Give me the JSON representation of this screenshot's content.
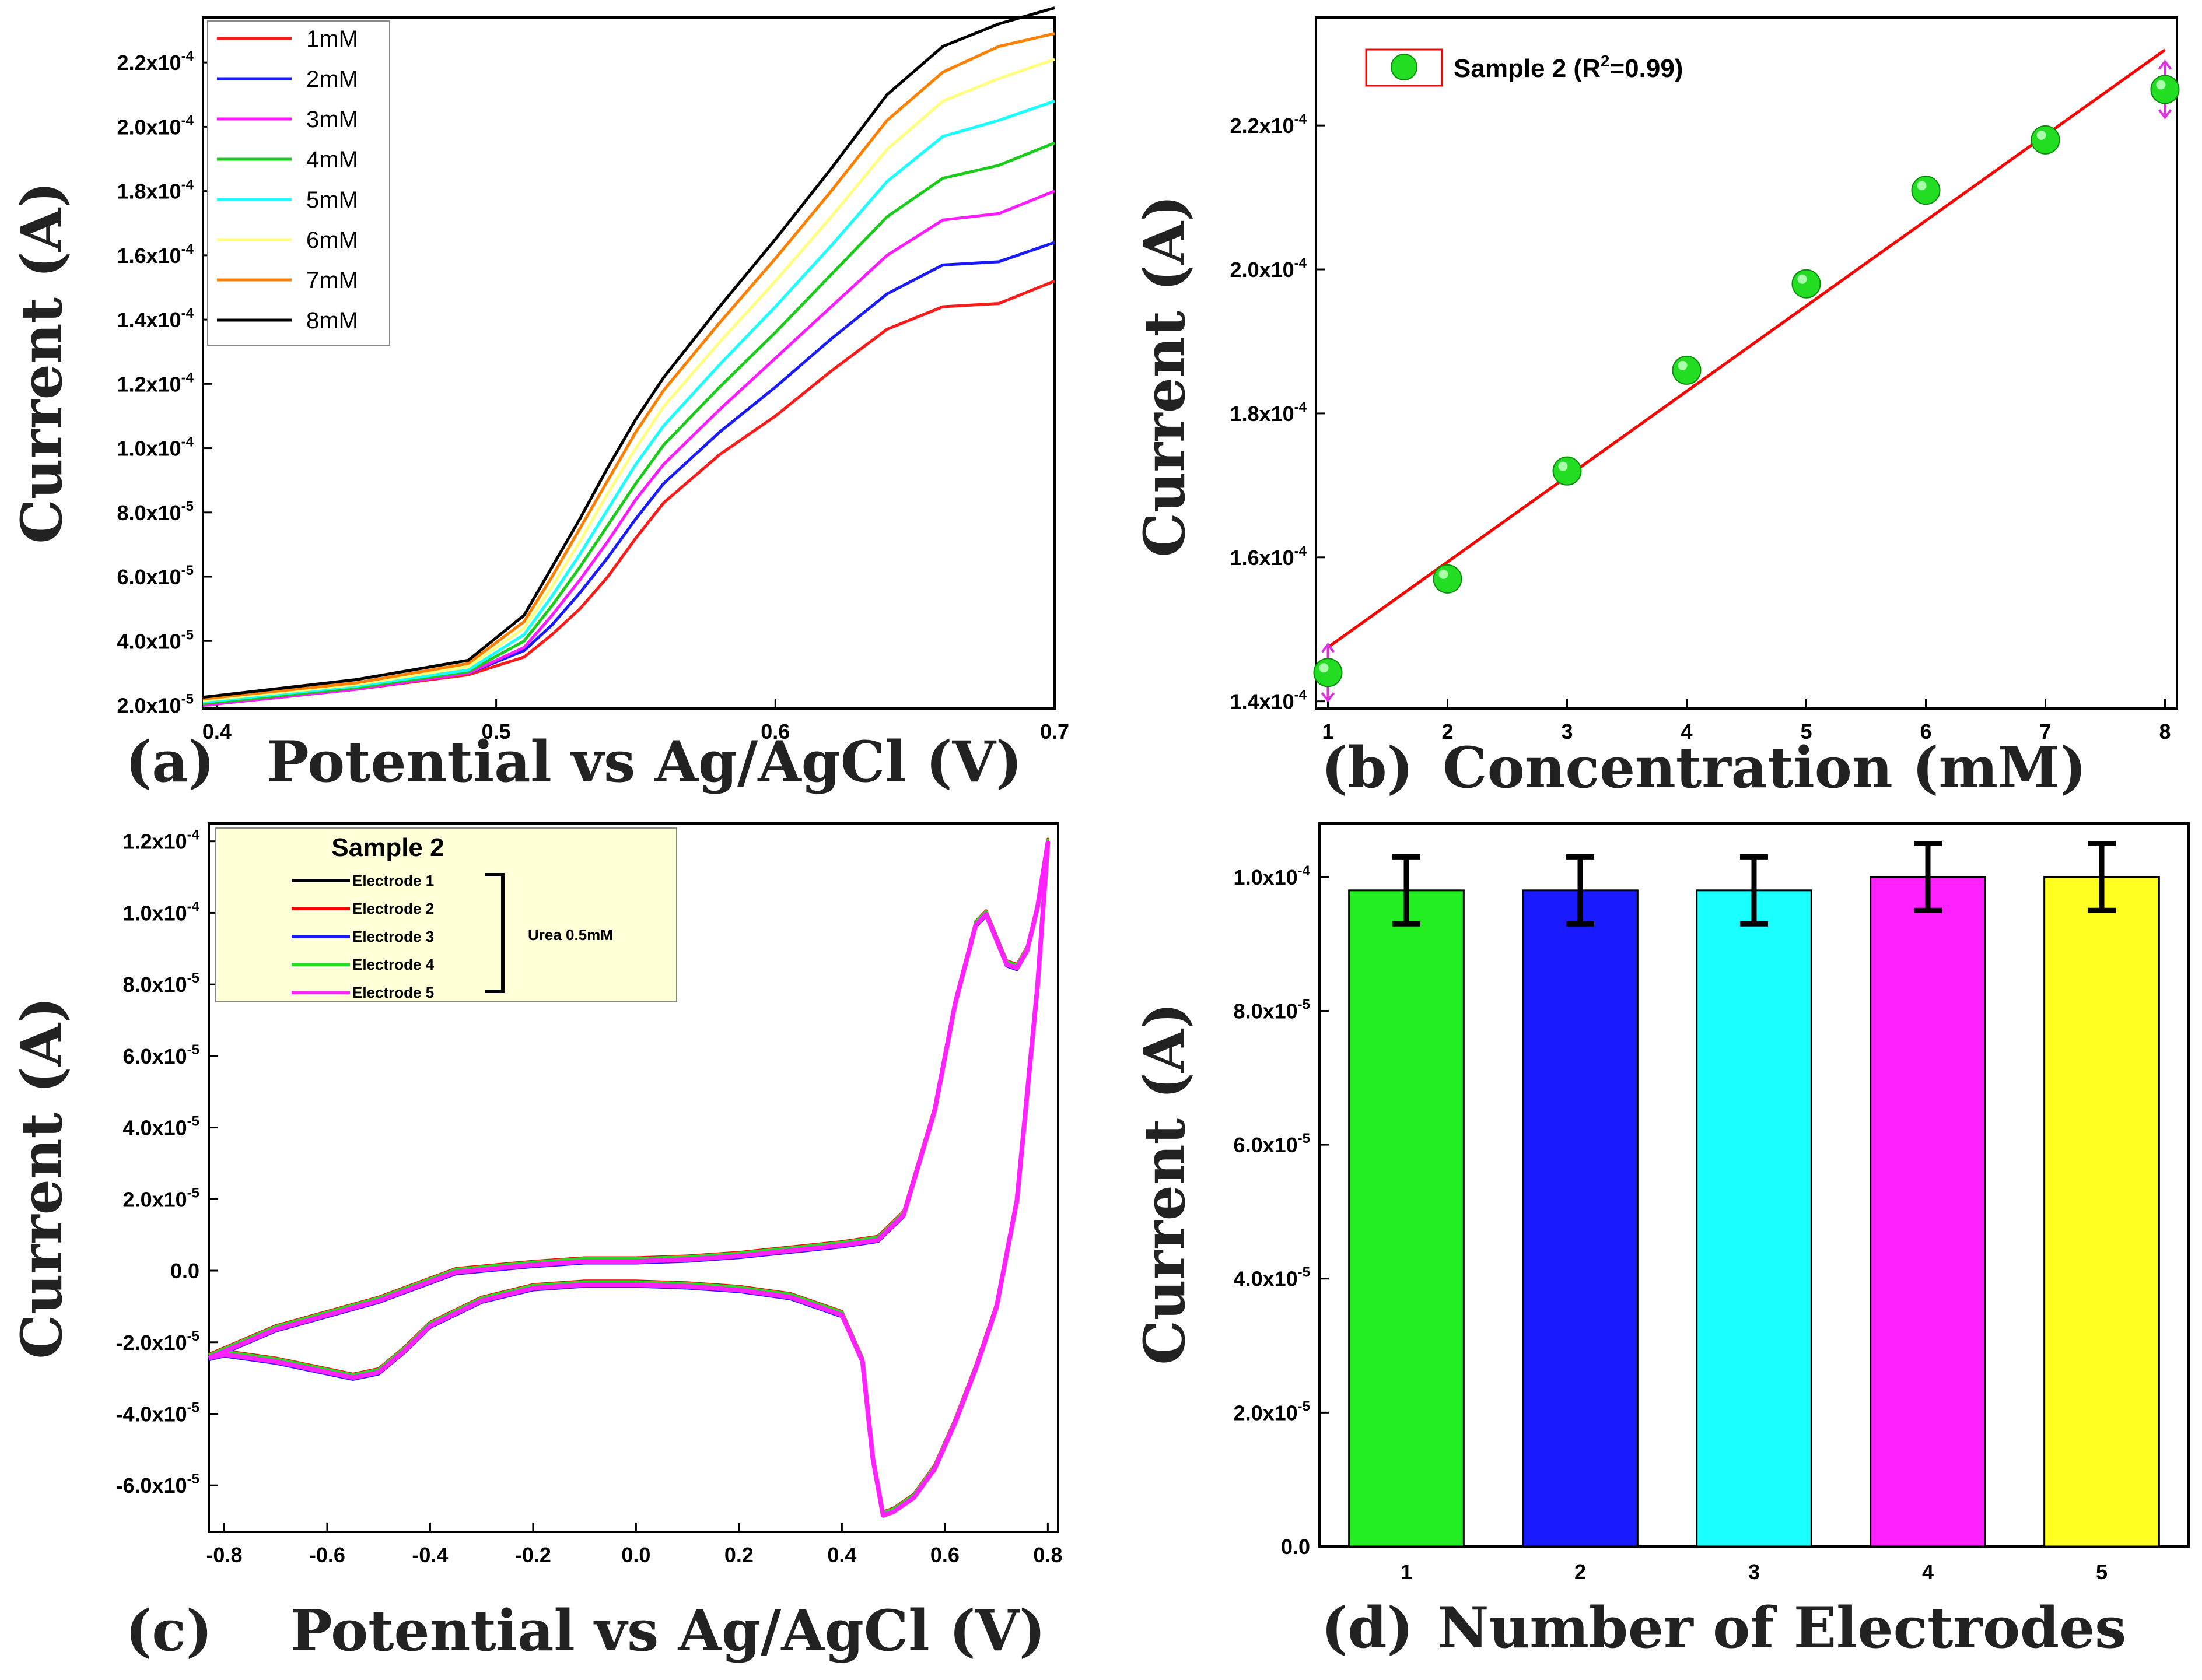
{
  "chart_data": [
    {
      "panel": "(a)",
      "type": "line",
      "xlabel": "Potential vs Ag/AgCl (V)",
      "ylabel": "Current (A)",
      "xlim": [
        0.395,
        0.7
      ],
      "ylim": [
        1.9e-05,
        0.000234
      ],
      "x_ticks": [
        0.4,
        0.5,
        0.6,
        0.7
      ],
      "x_tick_labels": [
        "0.4",
        "0.5",
        "0.6",
        "0.7"
      ],
      "y_ticks": [
        2e-05,
        4e-05,
        6e-05,
        8e-05,
        0.0001,
        0.00012,
        0.00014,
        0.00016,
        0.00018,
        0.0002,
        0.00022
      ],
      "y_tick_labels": [
        {
          "m": "2.0x10",
          "e": "-5"
        },
        {
          "m": "4.0x10",
          "e": "-5"
        },
        {
          "m": "6.0x10",
          "e": "-5"
        },
        {
          "m": "8.0x10",
          "e": "-5"
        },
        {
          "m": "1.0x10",
          "e": "-4"
        },
        {
          "m": "1.2x10",
          "e": "-4"
        },
        {
          "m": "1.4x10",
          "e": "-4"
        },
        {
          "m": "1.6x10",
          "e": "-4"
        },
        {
          "m": "1.8x10",
          "e": "-4"
        },
        {
          "m": "2.0x10",
          "e": "-4"
        },
        {
          "m": "2.2x10",
          "e": "-4"
        }
      ],
      "legend_position": "top-left",
      "series": [
        {
          "name": "1mM",
          "color": "#ff1a1a",
          "x": [
            0.395,
            0.45,
            0.49,
            0.51,
            0.52,
            0.53,
            0.54,
            0.55,
            0.56,
            0.58,
            0.6,
            0.62,
            0.64,
            0.66,
            0.68,
            0.7
          ],
          "y": [
            2e-05,
            2.5e-05,
            2.95e-05,
            3.5e-05,
            4.2e-05,
            5e-05,
            6e-05,
            7.2e-05,
            8.3e-05,
            9.8e-05,
            0.00011,
            0.000124,
            0.000137,
            0.000144,
            0.000145,
            0.000152
          ]
        },
        {
          "name": "2mM",
          "color": "#1a1aff",
          "x": [
            0.395,
            0.45,
            0.49,
            0.51,
            0.52,
            0.53,
            0.54,
            0.55,
            0.56,
            0.58,
            0.6,
            0.62,
            0.64,
            0.66,
            0.68,
            0.7
          ],
          "y": [
            2e-05,
            2.5e-05,
            3e-05,
            3.7e-05,
            4.5e-05,
            5.5e-05,
            6.6e-05,
            7.8e-05,
            8.9e-05,
            0.000105,
            0.000119,
            0.000134,
            0.000148,
            0.000157,
            0.000158,
            0.000164
          ]
        },
        {
          "name": "3mM",
          "color": "#ff1aff",
          "x": [
            0.395,
            0.45,
            0.49,
            0.51,
            0.52,
            0.53,
            0.54,
            0.55,
            0.56,
            0.58,
            0.6,
            0.62,
            0.64,
            0.66,
            0.68,
            0.7
          ],
          "y": [
            2e-05,
            2.5e-05,
            3e-05,
            3.8e-05,
            4.8e-05,
            5.9e-05,
            7.1e-05,
            8.4e-05,
            9.5e-05,
            0.000112,
            0.000128,
            0.000144,
            0.00016,
            0.000171,
            0.000173,
            0.00018
          ]
        },
        {
          "name": "4mM",
          "color": "#1acc1a",
          "x": [
            0.395,
            0.45,
            0.49,
            0.51,
            0.52,
            0.53,
            0.54,
            0.55,
            0.56,
            0.58,
            0.6,
            0.62,
            0.64,
            0.66,
            0.68,
            0.7
          ],
          "y": [
            2.05e-05,
            2.55e-05,
            3.05e-05,
            4e-05,
            5.1e-05,
            6.3e-05,
            7.6e-05,
            8.9e-05,
            0.000101,
            0.000119,
            0.000136,
            0.000154,
            0.000172,
            0.000184,
            0.000188,
            0.000195
          ]
        },
        {
          "name": "5mM",
          "color": "#1affff",
          "x": [
            0.395,
            0.45,
            0.49,
            0.51,
            0.52,
            0.53,
            0.54,
            0.55,
            0.56,
            0.58,
            0.6,
            0.62,
            0.64,
            0.66,
            0.68,
            0.7
          ],
          "y": [
            2.1e-05,
            2.6e-05,
            3.1e-05,
            4.2e-05,
            5.4e-05,
            6.7e-05,
            8.1e-05,
            9.5e-05,
            0.000107,
            0.000126,
            0.000144,
            0.000163,
            0.000183,
            0.000197,
            0.000202,
            0.000208
          ]
        },
        {
          "name": "6mM",
          "color": "#ffff80",
          "x": [
            0.395,
            0.45,
            0.49,
            0.51,
            0.52,
            0.53,
            0.54,
            0.55,
            0.56,
            0.58,
            0.6,
            0.62,
            0.64,
            0.66,
            0.68,
            0.7
          ],
          "y": [
            2.15e-05,
            2.65e-05,
            3.2e-05,
            4.4e-05,
            5.7e-05,
            7.1e-05,
            8.6e-05,
            0.0001,
            0.000113,
            0.000133,
            0.000152,
            0.000172,
            0.000193,
            0.000208,
            0.000215,
            0.000221
          ]
        },
        {
          "name": "7mM",
          "color": "#ff8000",
          "x": [
            0.395,
            0.45,
            0.49,
            0.51,
            0.52,
            0.53,
            0.54,
            0.55,
            0.56,
            0.58,
            0.6,
            0.62,
            0.64,
            0.66,
            0.68,
            0.7
          ],
          "y": [
            2.2e-05,
            2.7e-05,
            3.3e-05,
            4.6e-05,
            6e-05,
            7.5e-05,
            9e-05,
            0.000105,
            0.000118,
            0.000139,
            0.000159,
            0.00018,
            0.000202,
            0.000217,
            0.000225,
            0.000229
          ]
        },
        {
          "name": "8mM",
          "color": "#000000",
          "x": [
            0.395,
            0.45,
            0.49,
            0.51,
            0.52,
            0.53,
            0.54,
            0.55,
            0.56,
            0.58,
            0.6,
            0.62,
            0.64,
            0.66,
            0.68,
            0.7
          ],
          "y": [
            2.25e-05,
            2.8e-05,
            3.4e-05,
            4.8e-05,
            6.3e-05,
            7.8e-05,
            9.4e-05,
            0.000109,
            0.000122,
            0.000144,
            0.000165,
            0.000187,
            0.00021,
            0.000225,
            0.000232,
            0.000237
          ]
        }
      ]
    },
    {
      "panel": "(b)",
      "type": "scatter",
      "xlabel": "Concentration (mM)",
      "ylabel": "Current (A)",
      "xlim": [
        0.9,
        8.1
      ],
      "ylim": [
        0.000139,
        0.000235
      ],
      "x_ticks": [
        1,
        2,
        3,
        4,
        5,
        6,
        7,
        8
      ],
      "x_tick_labels": [
        "1",
        "2",
        "3",
        "4",
        "5",
        "6",
        "7",
        "8"
      ],
      "y_ticks": [
        0.00014,
        0.00016,
        0.00018,
        0.0002,
        0.00022
      ],
      "y_tick_labels": [
        {
          "m": "1.4x10",
          "e": "-4"
        },
        {
          "m": "1.6x10",
          "e": "-4"
        },
        {
          "m": "1.8x10",
          "e": "-4"
        },
        {
          "m": "2.0x10",
          "e": "-4"
        },
        {
          "m": "2.2x10",
          "e": "-4"
        }
      ],
      "legend_position": "top-left",
      "legend": {
        "prefix": "Sample 2 (R",
        "sup": "2",
        "suffix": "=0.99)"
      },
      "points": {
        "color": "#22dd22",
        "x": [
          1,
          2,
          3,
          4,
          5,
          6,
          7,
          8
        ],
        "y": [
          0.000144,
          0.000157,
          0.000172,
          0.000186,
          0.000198,
          0.000211,
          0.000218,
          0.000225
        ]
      },
      "error_bar_points": [
        1,
        8
      ],
      "fit": {
        "color": "#ff0000",
        "x": [
          1,
          8
        ],
        "y": [
          0.0001475,
          0.0002305
        ]
      }
    },
    {
      "panel": "(c)",
      "type": "line",
      "xlabel": "Potential vs Ag/AgCl (V)",
      "ylabel": "Current (A)",
      "xlim": [
        -0.83,
        0.82
      ],
      "ylim": [
        -7.3e-05,
        0.000125
      ],
      "x_ticks": [
        -0.8,
        -0.6,
        -0.4,
        -0.2,
        0.0,
        0.2,
        0.4,
        0.6,
        0.8
      ],
      "x_tick_labels": [
        "-0.8",
        "-0.6",
        "-0.4",
        "-0.2",
        "0.0",
        "0.2",
        "0.4",
        "0.6",
        "0.8"
      ],
      "y_ticks": [
        -6e-05,
        -4e-05,
        -2e-05,
        0,
        2e-05,
        4e-05,
        6e-05,
        8e-05,
        0.0001,
        0.00012
      ],
      "y_tick_labels": [
        {
          "m": "-6.0x10",
          "e": "-5"
        },
        {
          "m": "-4.0x10",
          "e": "-5"
        },
        {
          "m": "-2.0x10",
          "e": "-5"
        },
        {
          "m": "0.0",
          "e": ""
        },
        {
          "m": "2.0x10",
          "e": "-5"
        },
        {
          "m": "4.0x10",
          "e": "-5"
        },
        {
          "m": "6.0x10",
          "e": "-5"
        },
        {
          "m": "8.0x10",
          "e": "-5"
        },
        {
          "m": "1.0x10",
          "e": "-4"
        },
        {
          "m": "1.2x10",
          "e": "-4"
        }
      ],
      "legend_position": "top-left",
      "legend_title": "Sample 2",
      "legend_bracket_label": "Urea 0.5mM",
      "series": [
        {
          "name": "Electrode 1",
          "color": "#000000"
        },
        {
          "name": "Electrode 2",
          "color": "#ff0000"
        },
        {
          "name": "Electrode 3",
          "color": "#1a1aff"
        },
        {
          "name": "Electrode 4",
          "color": "#22dd22"
        },
        {
          "name": "Electrode 5",
          "color": "#ff22ff"
        }
      ],
      "loop": {
        "upper_x": [
          -0.83,
          -0.7,
          -0.5,
          -0.35,
          -0.2,
          -0.1,
          0.0,
          0.1,
          0.2,
          0.3,
          0.4,
          0.47,
          0.52,
          0.58,
          0.62,
          0.66,
          0.68,
          0.7,
          0.72,
          0.74,
          0.76,
          0.78,
          0.8
        ],
        "upper_y": [
          -2.4e-05,
          -1.6e-05,
          -8e-06,
          0,
          2e-06,
          3e-06,
          3e-06,
          3.5e-06,
          4.5e-06,
          6e-06,
          7.5e-06,
          9e-06,
          1.6e-05,
          4.5e-05,
          7.5e-05,
          9.7e-05,
          0.0001,
          9.3e-05,
          8.6e-05,
          8.5e-05,
          9e-05,
          0.000102,
          0.00012
        ],
        "lower_x": [
          0.8,
          0.78,
          0.74,
          0.7,
          0.66,
          0.62,
          0.58,
          0.54,
          0.5,
          0.48,
          0.46,
          0.44,
          0.4,
          0.3,
          0.2,
          0.1,
          0.0,
          -0.1,
          -0.2,
          -0.3,
          -0.4,
          -0.45,
          -0.5,
          -0.55,
          -0.6,
          -0.7,
          -0.8,
          -0.83
        ],
        "lower_y": [
          0.00012,
          8e-05,
          2e-05,
          -1e-05,
          -2.7e-05,
          -4.2e-05,
          -5.5e-05,
          -6.3e-05,
          -6.7e-05,
          -6.8e-05,
          -5.2e-05,
          -2.5e-05,
          -1.2e-05,
          -7e-06,
          -5e-06,
          -4e-06,
          -3.5e-06,
          -3.5e-06,
          -4.5e-06,
          -8e-06,
          -1.5e-05,
          -2.2e-05,
          -2.8e-05,
          -2.95e-05,
          -2.8e-05,
          -2.5e-05,
          -2.3e-05,
          -2.4e-05
        ]
      }
    },
    {
      "panel": "(d)",
      "type": "bar",
      "xlabel": "Number of Electrodes",
      "ylabel": "Current (A)",
      "categories": [
        "1",
        "2",
        "3",
        "4",
        "5"
      ],
      "values": [
        9.8e-05,
        9.8e-05,
        9.8e-05,
        0.0001,
        0.0001
      ],
      "errors": [
        5e-06,
        5e-06,
        5e-06,
        5e-06,
        5e-06
      ],
      "colors": [
        "#22ee22",
        "#1a1aff",
        "#1affff",
        "#ff22ff",
        "#ffff22"
      ],
      "ylim": [
        0,
        0.000108
      ],
      "y_ticks": [
        0,
        2e-05,
        4e-05,
        6e-05,
        8e-05,
        0.0001
      ],
      "y_tick_labels": [
        {
          "m": "0.0",
          "e": ""
        },
        {
          "m": "2.0x10",
          "e": "-5"
        },
        {
          "m": "4.0x10",
          "e": "-5"
        },
        {
          "m": "6.0x10",
          "e": "-5"
        },
        {
          "m": "8.0x10",
          "e": "-5"
        },
        {
          "m": "1.0x10",
          "e": "-4"
        }
      ]
    }
  ]
}
